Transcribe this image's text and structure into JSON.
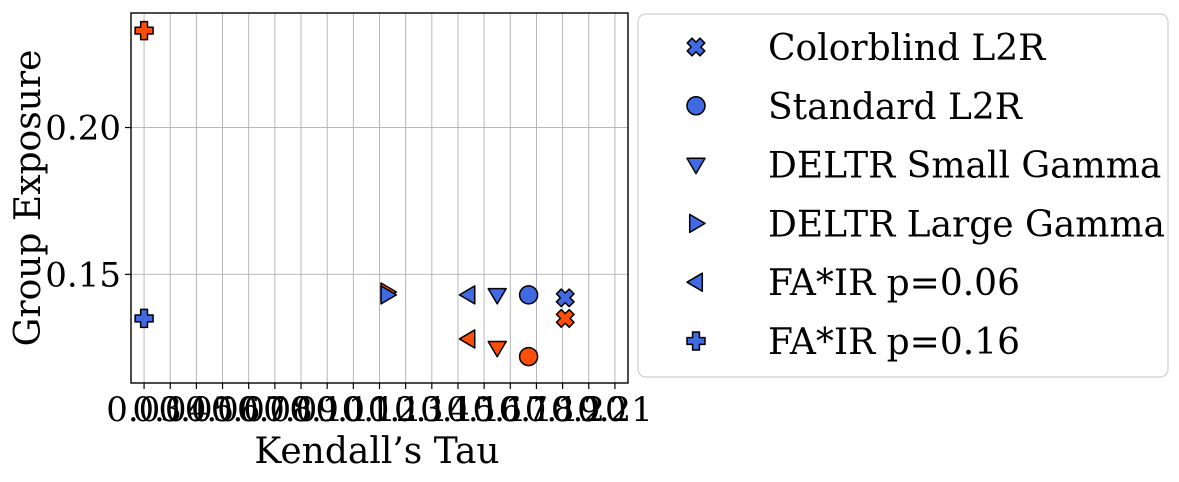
{
  "chart_data": {
    "type": "scatter",
    "xlabel": "Kendall’s Tau",
    "ylabel": "Group Exposure",
    "xlim": [
      0.025,
      0.215
    ],
    "ylim": [
      0.113,
      0.239
    ],
    "x_ticks": [
      "0.03",
      "0.04",
      "0.05",
      "0.06",
      "0.07",
      "0.08",
      "0.09",
      "0.10",
      "0.11",
      "0.12",
      "0.13",
      "0.14",
      "0.15",
      "0.16",
      "0.17",
      "0.18",
      "0.19",
      "0.20",
      "0.21"
    ],
    "x_tick_values": [
      0.03,
      0.04,
      0.05,
      0.06,
      0.07,
      0.08,
      0.09,
      0.1,
      0.11,
      0.12,
      0.13,
      0.14,
      0.15,
      0.16,
      0.17,
      0.18,
      0.19,
      0.2,
      0.21
    ],
    "y_ticks": [
      "0.15",
      "0.20"
    ],
    "y_tick_values": [
      0.15,
      0.2
    ],
    "grid": true,
    "legend_position": "right",
    "group_colors": [
      "#4169e1",
      "#fc4e07"
    ],
    "series": [
      {
        "name": "Colorblind L2R",
        "marker": "x",
        "points": [
          [
            0.191,
            0.142
          ],
          [
            0.191,
            0.135
          ]
        ]
      },
      {
        "name": "Standard L2R",
        "marker": "circle",
        "points": [
          [
            0.177,
            0.143
          ],
          [
            0.177,
            0.122
          ]
        ]
      },
      {
        "name": "DELTR Small Gamma",
        "marker": "triangle-down",
        "points": [
          [
            0.165,
            0.143
          ],
          [
            0.165,
            0.125
          ]
        ]
      },
      {
        "name": "DELTR Large Gamma",
        "marker": "triangle-right",
        "points": [
          [
            0.123,
            0.143
          ],
          [
            0.123,
            0.144
          ]
        ]
      },
      {
        "name": "FA*IR p=0.06",
        "marker": "triangle-left",
        "points": [
          [
            0.154,
            0.143
          ],
          [
            0.154,
            0.128
          ]
        ]
      },
      {
        "name": "FA*IR p=0.16",
        "marker": "plus",
        "points": [
          [
            0.03,
            0.135
          ],
          [
            0.03,
            0.233
          ]
        ]
      }
    ]
  }
}
